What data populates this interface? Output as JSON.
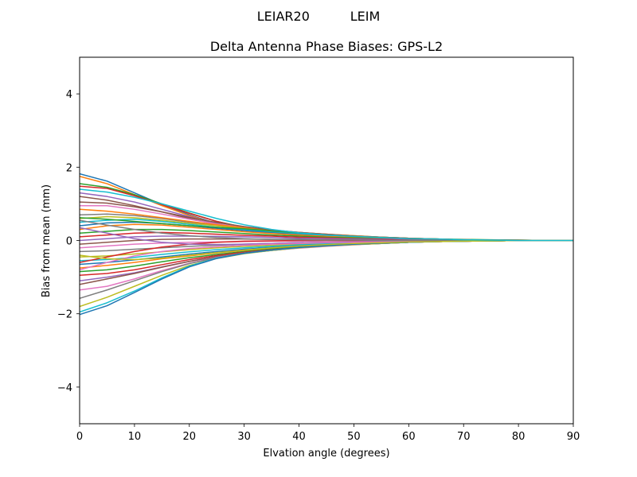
{
  "figure": {
    "suptitle": "LEIAR20          LEIM"
  },
  "chart_data": {
    "type": "line",
    "title": "Delta Antenna Phase Biases: GPS-L2",
    "xlabel": "Elvation angle (degrees)",
    "ylabel": "Bias from mean (mm)",
    "xlim": [
      0,
      90
    ],
    "ylim": [
      -5,
      5
    ],
    "xticks": [
      0,
      10,
      20,
      30,
      40,
      50,
      60,
      70,
      80,
      90
    ],
    "yticks": [
      -4,
      -2,
      0,
      2,
      4
    ],
    "ytick_labels": [
      "−4",
      "−2",
      "0",
      "2",
      "4"
    ],
    "grid": false,
    "legend": "none",
    "x": [
      0,
      5,
      10,
      15,
      20,
      25,
      30,
      35,
      40,
      45,
      50,
      55,
      60,
      65,
      70,
      75,
      80,
      85,
      90
    ],
    "colors": [
      "#1f77b4",
      "#ff7f0e",
      "#2ca02c",
      "#d62728",
      "#9467bd",
      "#8c564b",
      "#e377c2",
      "#7f7f7f",
      "#bcbd22",
      "#17becf"
    ],
    "series": [
      {
        "values": [
          1.82,
          1.62,
          1.3,
          0.98,
          0.7,
          0.46,
          0.3,
          0.2,
          0.14,
          0.1,
          0.07,
          0.05,
          0.04,
          0.03,
          0.02,
          0.01,
          0.0,
          0.0,
          0.0
        ]
      },
      {
        "values": [
          1.75,
          1.55,
          1.25,
          0.95,
          0.68,
          0.45,
          0.3,
          0.21,
          0.15,
          0.11,
          0.08,
          0.06,
          0.05,
          0.03,
          0.02,
          0.01,
          0.01,
          0.0,
          0.0
        ]
      },
      {
        "values": [
          1.55,
          1.45,
          1.25,
          1.0,
          0.75,
          0.52,
          0.36,
          0.25,
          0.18,
          0.13,
          0.1,
          0.07,
          0.05,
          0.04,
          0.03,
          0.02,
          0.01,
          0.0,
          0.0
        ]
      },
      {
        "values": [
          1.48,
          1.42,
          1.22,
          0.98,
          0.74,
          0.52,
          0.35,
          0.24,
          0.17,
          0.12,
          0.09,
          0.06,
          0.05,
          0.03,
          0.02,
          0.01,
          0.0,
          0.0,
          0.0
        ]
      },
      {
        "values": [
          1.3,
          1.2,
          1.05,
          0.85,
          0.65,
          0.46,
          0.32,
          0.22,
          0.16,
          0.12,
          0.09,
          0.06,
          0.05,
          0.03,
          0.02,
          0.01,
          0.0,
          0.0,
          0.0
        ]
      },
      {
        "values": [
          1.2,
          1.1,
          0.95,
          0.78,
          0.6,
          0.44,
          0.33,
          0.25,
          0.19,
          0.14,
          0.1,
          0.07,
          0.05,
          0.03,
          0.02,
          0.01,
          0.01,
          0.0,
          0.0
        ]
      },
      {
        "values": [
          0.95,
          0.95,
          0.85,
          0.72,
          0.58,
          0.45,
          0.36,
          0.28,
          0.22,
          0.16,
          0.12,
          0.09,
          0.06,
          0.04,
          0.02,
          0.01,
          0.0,
          0.0,
          0.0
        ]
      },
      {
        "values": [
          0.7,
          0.72,
          0.68,
          0.6,
          0.5,
          0.42,
          0.35,
          0.28,
          0.22,
          0.17,
          0.13,
          0.09,
          0.06,
          0.04,
          0.02,
          0.01,
          0.0,
          0.0,
          0.0
        ]
      },
      {
        "values": [
          0.6,
          0.65,
          0.62,
          0.55,
          0.47,
          0.4,
          0.33,
          0.27,
          0.21,
          0.16,
          0.12,
          0.08,
          0.05,
          0.03,
          0.02,
          0.01,
          0.0,
          0.0,
          0.0
        ]
      },
      {
        "values": [
          0.5,
          0.55,
          0.58,
          0.52,
          0.44,
          0.36,
          0.29,
          0.23,
          0.18,
          0.14,
          0.1,
          0.07,
          0.05,
          0.03,
          0.02,
          0.01,
          0.0,
          0.0,
          0.0
        ]
      },
      {
        "values": [
          0.4,
          0.48,
          0.5,
          0.46,
          0.4,
          0.33,
          0.27,
          0.21,
          0.16,
          0.12,
          0.09,
          0.06,
          0.04,
          0.03,
          0.02,
          0.01,
          0.0,
          0.0,
          0.0
        ]
      },
      {
        "values": [
          0.3,
          0.4,
          0.44,
          0.42,
          0.36,
          0.3,
          0.24,
          0.19,
          0.15,
          0.11,
          0.08,
          0.06,
          0.04,
          0.03,
          0.02,
          0.01,
          0.0,
          0.0,
          0.0
        ]
      },
      {
        "values": [
          0.2,
          0.25,
          0.3,
          0.3,
          0.27,
          0.23,
          0.19,
          0.15,
          0.12,
          0.09,
          0.07,
          0.05,
          0.03,
          0.02,
          0.01,
          0.01,
          0.0,
          0.0,
          0.0
        ]
      },
      {
        "values": [
          0.1,
          0.15,
          0.2,
          0.22,
          0.2,
          0.17,
          0.14,
          0.12,
          0.09,
          0.07,
          0.05,
          0.04,
          0.03,
          0.02,
          0.01,
          0.0,
          0.0,
          0.0,
          0.0
        ]
      },
      {
        "values": [
          0.0,
          0.05,
          0.1,
          0.12,
          0.12,
          0.11,
          0.1,
          0.08,
          0.06,
          0.05,
          0.04,
          0.03,
          0.02,
          0.01,
          0.01,
          0.0,
          0.0,
          0.0,
          0.0
        ]
      },
      {
        "values": [
          -0.1,
          -0.05,
          0.0,
          0.03,
          0.04,
          0.04,
          0.04,
          0.03,
          0.03,
          0.02,
          0.02,
          0.01,
          0.01,
          0.01,
          0.0,
          0.0,
          0.0,
          0.0,
          0.0
        ]
      },
      {
        "values": [
          -0.2,
          -0.15,
          -0.1,
          -0.07,
          -0.05,
          -0.04,
          -0.03,
          -0.02,
          -0.02,
          -0.01,
          -0.01,
          -0.01,
          0.0,
          0.0,
          0.0,
          0.0,
          0.0,
          0.0,
          0.0
        ]
      },
      {
        "values": [
          -0.3,
          -0.28,
          -0.24,
          -0.2,
          -0.16,
          -0.13,
          -0.1,
          -0.08,
          -0.06,
          -0.05,
          -0.04,
          -0.03,
          -0.02,
          -0.01,
          -0.01,
          0.0,
          0.0,
          0.0,
          0.0
        ]
      },
      {
        "values": [
          -0.45,
          -0.42,
          -0.37,
          -0.31,
          -0.25,
          -0.2,
          -0.16,
          -0.13,
          -0.1,
          -0.08,
          -0.06,
          -0.04,
          -0.03,
          -0.02,
          -0.01,
          -0.01,
          0.0,
          0.0,
          0.0
        ]
      },
      {
        "values": [
          -0.55,
          -0.52,
          -0.46,
          -0.38,
          -0.31,
          -0.25,
          -0.2,
          -0.16,
          -0.12,
          -0.09,
          -0.07,
          -0.05,
          -0.04,
          -0.02,
          -0.01,
          -0.01,
          0.0,
          0.0,
          0.0
        ]
      },
      {
        "values": [
          -0.65,
          -0.6,
          -0.53,
          -0.45,
          -0.37,
          -0.3,
          -0.24,
          -0.19,
          -0.14,
          -0.11,
          -0.08,
          -0.06,
          -0.04,
          -0.03,
          -0.02,
          -0.01,
          0.0,
          0.0,
          0.0
        ]
      },
      {
        "values": [
          -0.75,
          -0.68,
          -0.6,
          -0.5,
          -0.42,
          -0.34,
          -0.27,
          -0.21,
          -0.16,
          -0.12,
          -0.09,
          -0.06,
          -0.04,
          -0.03,
          -0.02,
          -0.01,
          0.0,
          0.0,
          0.0
        ]
      },
      {
        "values": [
          -0.85,
          -0.8,
          -0.7,
          -0.58,
          -0.47,
          -0.38,
          -0.3,
          -0.23,
          -0.18,
          -0.13,
          -0.1,
          -0.07,
          -0.05,
          -0.03,
          -0.02,
          -0.01,
          0.0,
          0.0,
          0.0
        ]
      },
      {
        "values": [
          -0.95,
          -0.9,
          -0.8,
          -0.66,
          -0.52,
          -0.41,
          -0.32,
          -0.25,
          -0.19,
          -0.14,
          -0.1,
          -0.07,
          -0.05,
          -0.03,
          -0.02,
          -0.01,
          0.0,
          0.0,
          0.0
        ]
      },
      {
        "values": [
          -1.1,
          -1.0,
          -0.88,
          -0.72,
          -0.57,
          -0.44,
          -0.34,
          -0.26,
          -0.2,
          -0.15,
          -0.11,
          -0.08,
          -0.05,
          -0.03,
          -0.02,
          -0.01,
          0.0,
          0.0,
          0.0
        ]
      },
      {
        "values": [
          -1.2,
          -1.05,
          -0.9,
          -0.73,
          -0.57,
          -0.44,
          -0.34,
          -0.26,
          -0.2,
          -0.15,
          -0.11,
          -0.08,
          -0.05,
          -0.03,
          -0.02,
          -0.01,
          0.0,
          0.0,
          0.0
        ]
      },
      {
        "values": [
          -1.35,
          -1.25,
          -1.05,
          -0.82,
          -0.62,
          -0.46,
          -0.35,
          -0.27,
          -0.21,
          -0.16,
          -0.12,
          -0.08,
          -0.05,
          -0.03,
          -0.02,
          -0.01,
          0.0,
          0.0,
          0.0
        ]
      },
      {
        "values": [
          -1.58,
          -1.35,
          -1.1,
          -0.85,
          -0.63,
          -0.47,
          -0.35,
          -0.27,
          -0.2,
          -0.15,
          -0.11,
          -0.08,
          -0.05,
          -0.03,
          -0.02,
          -0.01,
          0.0,
          0.0,
          0.0
        ]
      },
      {
        "values": [
          -1.8,
          -1.55,
          -1.25,
          -0.95,
          -0.68,
          -0.49,
          -0.36,
          -0.27,
          -0.2,
          -0.15,
          -0.11,
          -0.08,
          -0.05,
          -0.03,
          -0.02,
          -0.01,
          0.0,
          0.0,
          0.0
        ]
      },
      {
        "values": [
          -1.95,
          -1.7,
          -1.38,
          -1.02,
          -0.7,
          -0.48,
          -0.35,
          -0.26,
          -0.19,
          -0.14,
          -0.1,
          -0.07,
          -0.05,
          -0.03,
          -0.02,
          -0.01,
          0.0,
          0.0,
          0.0
        ]
      },
      {
        "values": [
          -2.02,
          -1.78,
          -1.42,
          -1.05,
          -0.72,
          -0.49,
          -0.35,
          -0.26,
          -0.19,
          -0.14,
          -0.1,
          -0.07,
          -0.05,
          -0.03,
          -0.02,
          -0.01,
          0.0,
          0.0,
          0.0
        ]
      },
      {
        "values": [
          0.85,
          0.8,
          0.72,
          0.62,
          0.52,
          0.43,
          0.35,
          0.28,
          0.22,
          0.17,
          0.13,
          0.09,
          0.06,
          0.04,
          0.02,
          0.01,
          0.0,
          0.0,
          0.0
        ]
      },
      {
        "values": [
          0.62,
          0.58,
          0.52,
          0.46,
          0.4,
          0.36,
          0.32,
          0.26,
          0.21,
          0.16,
          0.12,
          0.09,
          0.06,
          0.04,
          0.02,
          0.01,
          0.0,
          0.0,
          0.0
        ]
      },
      {
        "values": [
          -0.6,
          -0.45,
          -0.3,
          -0.18,
          -0.1,
          -0.05,
          -0.02,
          -0.01,
          0.0,
          0.0,
          0.0,
          0.0,
          0.0,
          0.0,
          0.0,
          0.0,
          0.0,
          0.0,
          0.0
        ]
      },
      {
        "values": [
          0.35,
          0.2,
          0.05,
          -0.05,
          -0.1,
          -0.11,
          -0.1,
          -0.08,
          -0.06,
          -0.05,
          -0.04,
          -0.03,
          -0.02,
          -0.01,
          -0.01,
          0.0,
          0.0,
          0.0,
          0.0
        ]
      },
      {
        "values": [
          1.05,
          1.02,
          0.92,
          0.78,
          0.63,
          0.49,
          0.38,
          0.29,
          0.22,
          0.17,
          0.12,
          0.09,
          0.06,
          0.04,
          0.02,
          0.01,
          0.0,
          0.0,
          0.0
        ]
      },
      {
        "values": [
          -0.8,
          -0.6,
          -0.42,
          -0.3,
          -0.22,
          -0.17,
          -0.13,
          -0.1,
          -0.08,
          -0.06,
          -0.05,
          -0.04,
          -0.03,
          -0.02,
          -0.01,
          0.0,
          0.0,
          0.0,
          0.0
        ]
      },
      {
        "values": [
          0.55,
          0.42,
          0.3,
          0.2,
          0.13,
          0.08,
          0.05,
          0.03,
          0.02,
          0.01,
          0.01,
          0.0,
          0.0,
          0.0,
          0.0,
          0.0,
          0.0,
          0.0,
          0.0
        ]
      },
      {
        "values": [
          -0.4,
          -0.5,
          -0.52,
          -0.48,
          -0.4,
          -0.33,
          -0.26,
          -0.2,
          -0.15,
          -0.11,
          -0.08,
          -0.06,
          -0.04,
          -0.03,
          -0.02,
          -0.01,
          0.0,
          0.0,
          0.0
        ]
      },
      {
        "values": [
          1.4,
          1.32,
          1.18,
          1.0,
          0.8,
          0.6,
          0.43,
          0.3,
          0.21,
          0.15,
          0.11,
          0.08,
          0.05,
          0.04,
          0.02,
          0.01,
          0.0,
          0.0,
          0.0
        ]
      }
    ]
  }
}
